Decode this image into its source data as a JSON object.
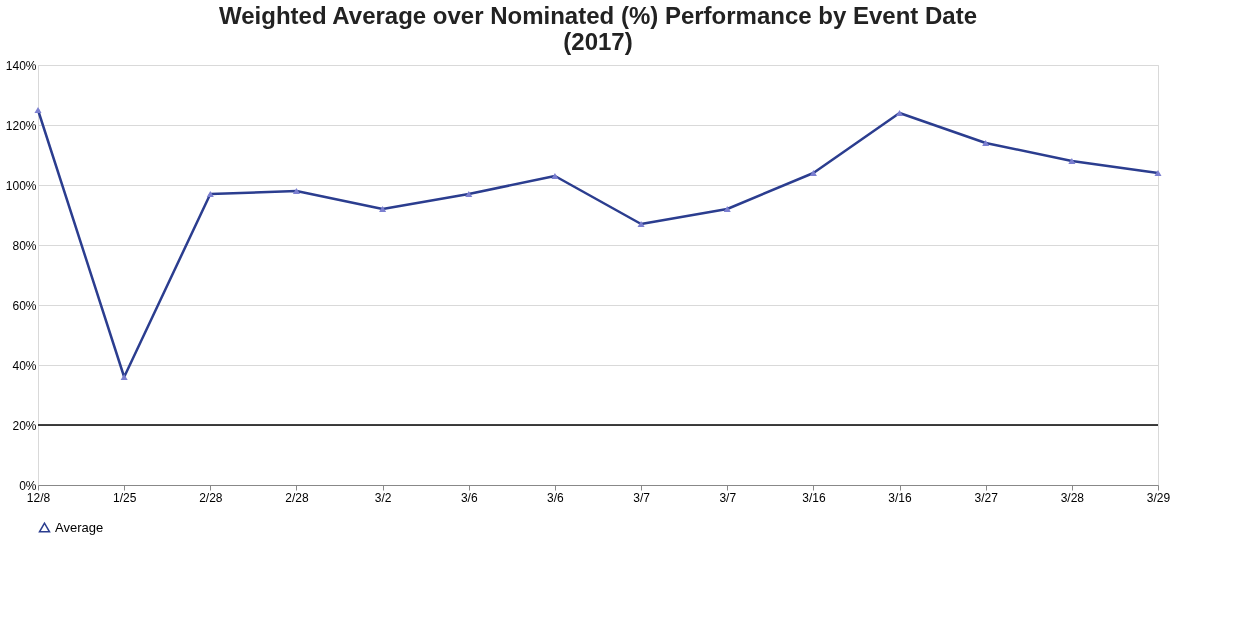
{
  "chart_data": {
    "type": "line",
    "title": [
      "Weighted Average over Nominated (%) Performance by Event Date",
      "(2017)"
    ],
    "categories": [
      "12/8",
      "1/25",
      "2/28",
      "2/28",
      "3/2",
      "3/6",
      "3/6",
      "3/7",
      "3/7",
      "3/16",
      "3/16",
      "3/27",
      "3/28",
      "3/29"
    ],
    "series": [
      {
        "name": "Average",
        "color": "#2b3d8f",
        "values": [
          125,
          36,
          97,
          98,
          92,
          97,
          103,
          87,
          92,
          104,
          124,
          114,
          108,
          104
        ]
      }
    ],
    "ylim": [
      0,
      140
    ],
    "yticks": [
      {
        "value": 0,
        "label": "0%"
      },
      {
        "value": 20,
        "label": "20%"
      },
      {
        "value": 40,
        "label": "40%"
      },
      {
        "value": 60,
        "label": "60%"
      },
      {
        "value": 80,
        "label": "80%"
      },
      {
        "value": 100,
        "label": "100%"
      },
      {
        "value": 120,
        "label": "120%"
      },
      {
        "value": 140,
        "label": "140%"
      }
    ],
    "ref_lines": [
      {
        "axis": "y",
        "value": 20,
        "color": "#000000"
      }
    ],
    "grid": "y",
    "legend": "bottom",
    "marker": "triangle",
    "line_style": "solid"
  }
}
